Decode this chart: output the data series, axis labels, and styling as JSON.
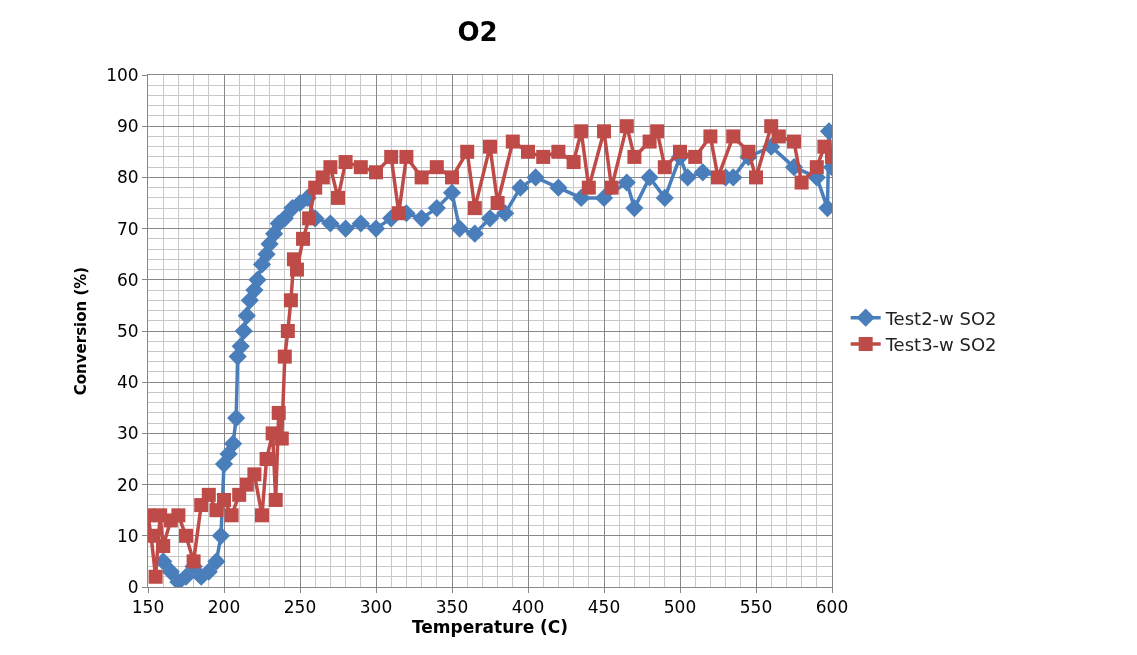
{
  "chart_data": {
    "type": "line",
    "title": "O2",
    "xlabel": "Temperature (C)",
    "ylabel": "Conversion (%)",
    "xlim": [
      150,
      600
    ],
    "xticks": [
      150,
      200,
      250,
      300,
      350,
      400,
      450,
      500,
      550,
      600
    ],
    "ylim": [
      0,
      100
    ],
    "yticks": [
      0,
      10,
      20,
      30,
      40,
      50,
      60,
      70,
      80,
      90,
      100
    ],
    "grid": true,
    "legend": "right",
    "series": [
      {
        "name": "Test2-w SO2",
        "color": "#4a7ebb",
        "marker": "diamond",
        "x": [
          160,
          165,
          170,
          175,
          180,
          185,
          190,
          195,
          198,
          200,
          203,
          206,
          208,
          209,
          211,
          213,
          215,
          217,
          220,
          222,
          225,
          228,
          230,
          233,
          236,
          240,
          245,
          250,
          255,
          260,
          270,
          280,
          290,
          300,
          310,
          320,
          330,
          340,
          350,
          355,
          365,
          375,
          385,
          395,
          405,
          420,
          435,
          450,
          465,
          470,
          480,
          490,
          500,
          505,
          515,
          530,
          535,
          545,
          560,
          575,
          590,
          597,
          598,
          600
        ],
        "values": [
          5,
          3,
          1,
          2,
          4,
          2,
          3,
          5,
          10,
          24,
          26,
          28,
          33,
          45,
          47,
          50,
          53,
          56,
          58,
          60,
          63,
          65,
          67,
          69,
          71,
          72,
          74,
          75,
          76,
          72,
          71,
          70,
          71,
          70,
          72,
          73,
          72,
          74,
          77,
          70,
          69,
          72,
          73,
          78,
          80,
          78,
          76,
          76,
          79,
          74,
          80,
          76,
          84,
          80,
          81,
          80,
          80,
          84,
          86,
          82,
          80,
          74,
          89,
          82
        ]
      },
      {
        "name": "Test3-w SO2",
        "color": "#be4b48",
        "marker": "square",
        "x": [
          150,
          152,
          155,
          158,
          160,
          165,
          170,
          175,
          180,
          185,
          190,
          195,
          200,
          205,
          210,
          215,
          220,
          225,
          228,
          232,
          234,
          236,
          238,
          240,
          242,
          244,
          246,
          248,
          252,
          256,
          260,
          265,
          270,
          275,
          280,
          290,
          300,
          310,
          315,
          320,
          330,
          340,
          350,
          360,
          365,
          375,
          380,
          390,
          400,
          410,
          420,
          430,
          435,
          440,
          450,
          455,
          465,
          470,
          480,
          485,
          490,
          500,
          510,
          520,
          525,
          535,
          545,
          550,
          560,
          565,
          575,
          580,
          590,
          595,
          600
        ],
        "values": [
          14,
          10,
          2,
          14,
          8,
          13,
          14,
          10,
          5,
          16,
          18,
          15,
          17,
          14,
          18,
          20,
          22,
          14,
          25,
          30,
          17,
          34,
          29,
          45,
          50,
          56,
          64,
          62,
          68,
          72,
          78,
          80,
          82,
          76,
          83,
          82,
          81,
          84,
          73,
          84,
          80,
          82,
          80,
          85,
          74,
          86,
          75,
          87,
          85,
          84,
          85,
          83,
          89,
          78,
          89,
          78,
          90,
          84,
          87,
          89,
          82,
          85,
          84,
          88,
          80,
          88,
          85,
          80,
          90,
          88,
          87,
          79,
          82,
          86,
          84
        ]
      }
    ]
  }
}
